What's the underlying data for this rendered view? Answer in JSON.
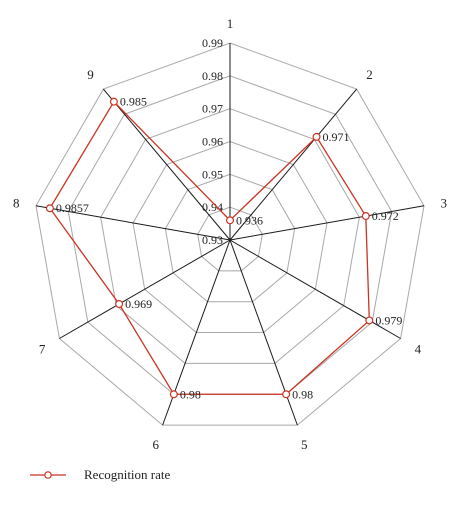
{
  "chart_data": {
    "type": "radar",
    "categories": [
      "1",
      "2",
      "3",
      "4",
      "5",
      "6",
      "7",
      "8",
      "9"
    ],
    "series": [
      {
        "name": "Recognition rate",
        "values": [
          0.936,
          0.971,
          0.972,
          0.979,
          0.98,
          0.98,
          0.969,
          0.9857,
          0.985
        ],
        "labels": [
          "0.936",
          "0.971",
          "0.972",
          "0.979",
          "0.98",
          "0.98",
          "0.969",
          "0.9857",
          "0.985"
        ],
        "color": "#cc3322"
      }
    ],
    "rlim": [
      0.93,
      0.99
    ],
    "r_ticks": [
      "0.93",
      "0.94",
      "0.95",
      "0.96",
      "0.97",
      "0.98",
      "0.99"
    ],
    "grid": true,
    "legend": "bottom-left",
    "colors": {
      "grid": "#a8a8a8",
      "spoke": "#1a1a1a",
      "series": "#cc3322"
    }
  }
}
